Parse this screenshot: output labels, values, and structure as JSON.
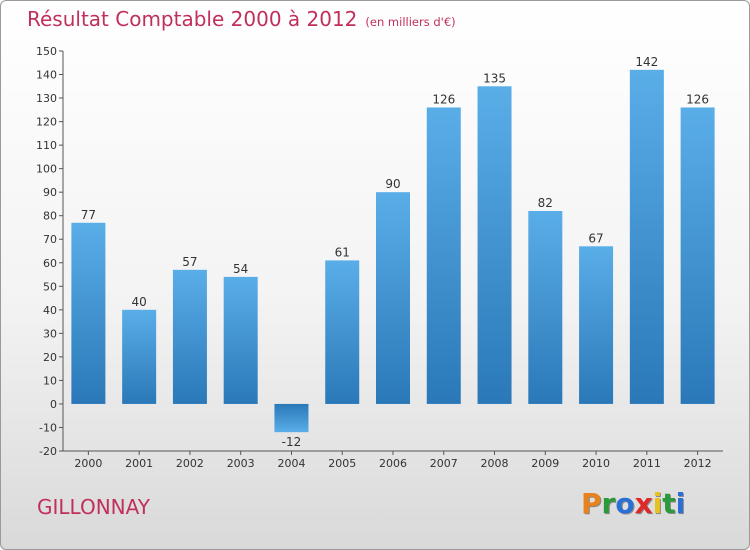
{
  "title": "Résultat Comptable 2000 à 2012",
  "subtitle": "(en milliers d'€)",
  "location": "GILLONNAY",
  "brand": {
    "letters": [
      "P",
      "r",
      "o",
      "x",
      "i",
      "t",
      "i"
    ],
    "colors": [
      "#e8821e",
      "#2a9a3a",
      "#2a6fd6",
      "#e02828",
      "#e8c21e",
      "#2a9a3a",
      "#2a6fd6"
    ]
  },
  "colors": {
    "title": "#c0305a",
    "bar_top": "#5aaee8",
    "bar_bottom": "#2a78b8"
  },
  "chart_data": {
    "type": "bar",
    "title": "Résultat Comptable 2000 à 2012",
    "subtitle": "(en milliers d'€)",
    "categories": [
      "2000",
      "2001",
      "2002",
      "2003",
      "2004",
      "2005",
      "2006",
      "2007",
      "2008",
      "2009",
      "2010",
      "2011",
      "2012"
    ],
    "values": [
      77,
      40,
      57,
      54,
      -12,
      61,
      90,
      126,
      135,
      82,
      67,
      142,
      126
    ],
    "ylim": [
      -20,
      150
    ],
    "yticks": [
      -20,
      -10,
      0,
      10,
      20,
      30,
      40,
      50,
      60,
      70,
      80,
      90,
      100,
      110,
      120,
      130,
      140,
      150
    ],
    "grid": false,
    "data_labels": true
  }
}
